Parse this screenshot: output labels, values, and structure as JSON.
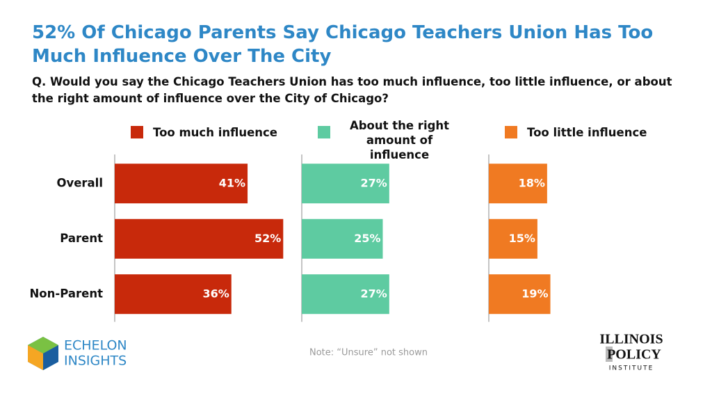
{
  "chart_data": {
    "type": "bar",
    "title": "52% Of Chicago Parents Say Chicago Teachers Union Has Too Much Influence Over The City",
    "subtitle": "Q. Would you say the Chicago Teachers Union has too much influence, too little influence, or about the right amount of influence over the City of Chicago?",
    "categories": [
      "Overall",
      "Parent",
      "Non-Parent"
    ],
    "series": [
      {
        "name": "Too much influence",
        "color": "#c8290b",
        "values": [
          41,
          52,
          36
        ],
        "value_labels": [
          "41%",
          "52%",
          "36%"
        ]
      },
      {
        "name": "About the right amount of influence",
        "color": "#5ecba1",
        "values": [
          27,
          25,
          27
        ],
        "value_labels": [
          "27%",
          "25%",
          "27%"
        ]
      },
      {
        "name": "Too little influence",
        "color": "#f07a22",
        "values": [
          18,
          15,
          19
        ],
        "value_labels": [
          "18%",
          "15%",
          "19%"
        ]
      }
    ],
    "note": "Note: “Unsure” not shown",
    "logo_left": [
      "ECHELON",
      "INSIGHTS"
    ],
    "logo_right": [
      "ILLINOIS",
      "POLICY",
      "INSTITUTE"
    ]
  }
}
